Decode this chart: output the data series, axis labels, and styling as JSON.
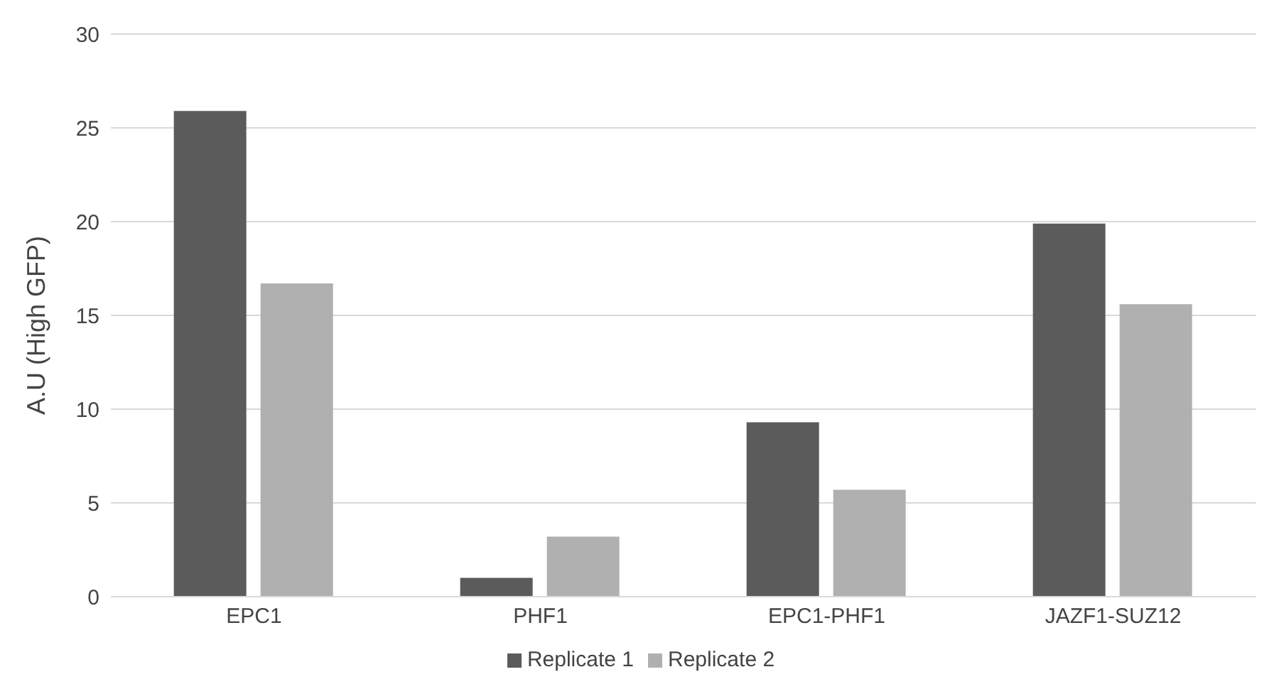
{
  "chart_data": {
    "type": "bar",
    "ylabel": "A.U (High GFP)",
    "categories": [
      "EPC1",
      "PHF1",
      "EPC1-PHF1",
      "JAZF1-SUZ12"
    ],
    "series": [
      {
        "name": "Replicate 1",
        "color": "#5b5b5b",
        "values": [
          25.9,
          1.0,
          9.3,
          19.9
        ]
      },
      {
        "name": "Replicate 2",
        "color": "#b0b0b0",
        "values": [
          16.7,
          3.2,
          5.7,
          15.6
        ]
      }
    ],
    "ylim": [
      0,
      30
    ],
    "yticks": [
      0,
      5,
      10,
      15,
      20,
      25,
      30
    ],
    "grid": "y",
    "legend": "bottom"
  }
}
